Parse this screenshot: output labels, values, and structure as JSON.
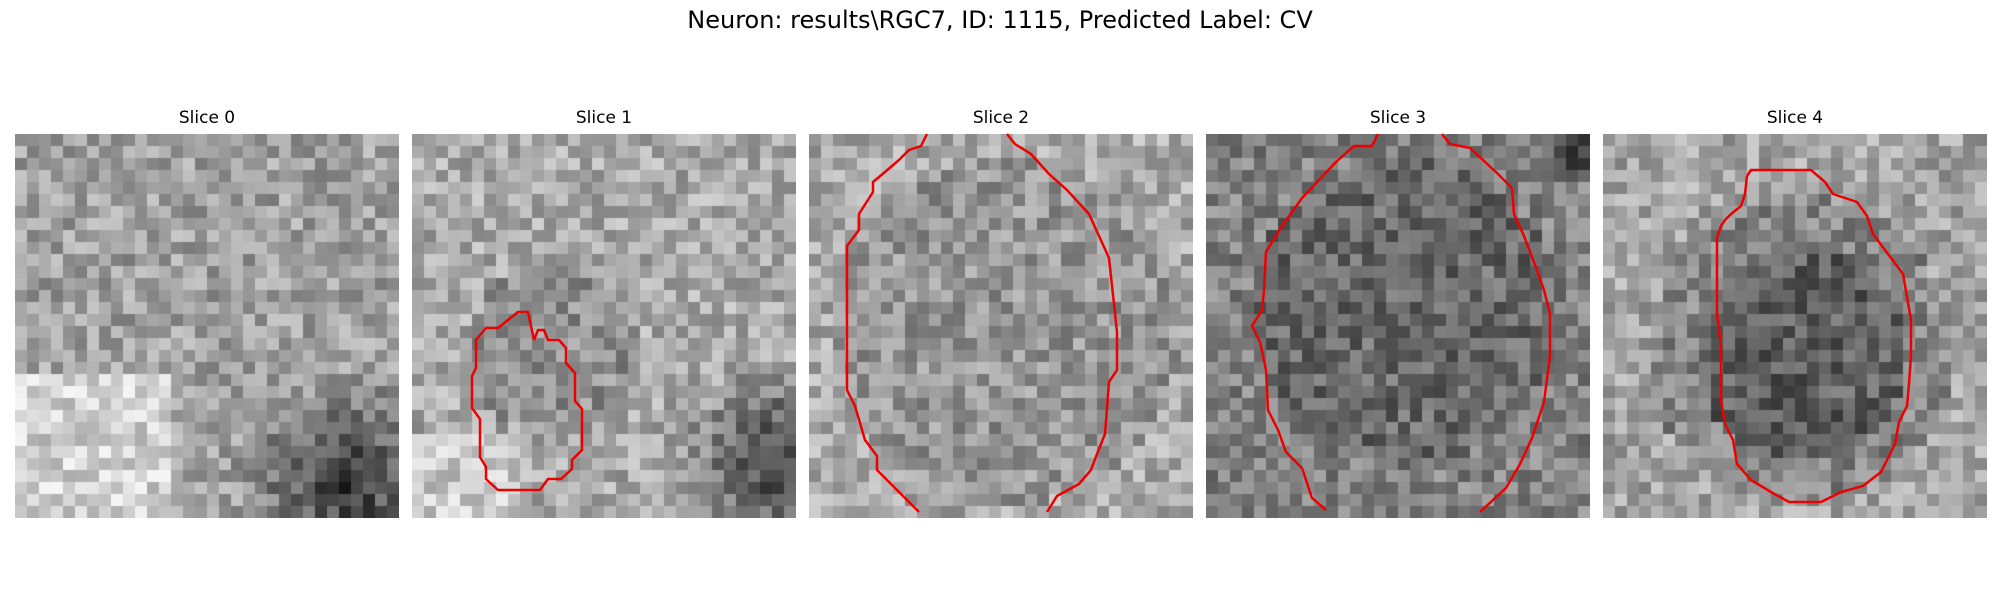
{
  "figure": {
    "title": "Neuron: results\\RGC7, ID: 1115, Predicted Label: CV"
  },
  "panels": [
    {
      "title": "Slice 0",
      "has_contour": false
    },
    {
      "title": "Slice 1",
      "has_contour": true
    },
    {
      "title": "Slice 2",
      "has_contour": true
    },
    {
      "title": "Slice 3",
      "has_contour": true
    },
    {
      "title": "Slice 4",
      "has_contour": true
    }
  ],
  "colors": {
    "contour": "#ee0000",
    "background": "#ffffff"
  }
}
